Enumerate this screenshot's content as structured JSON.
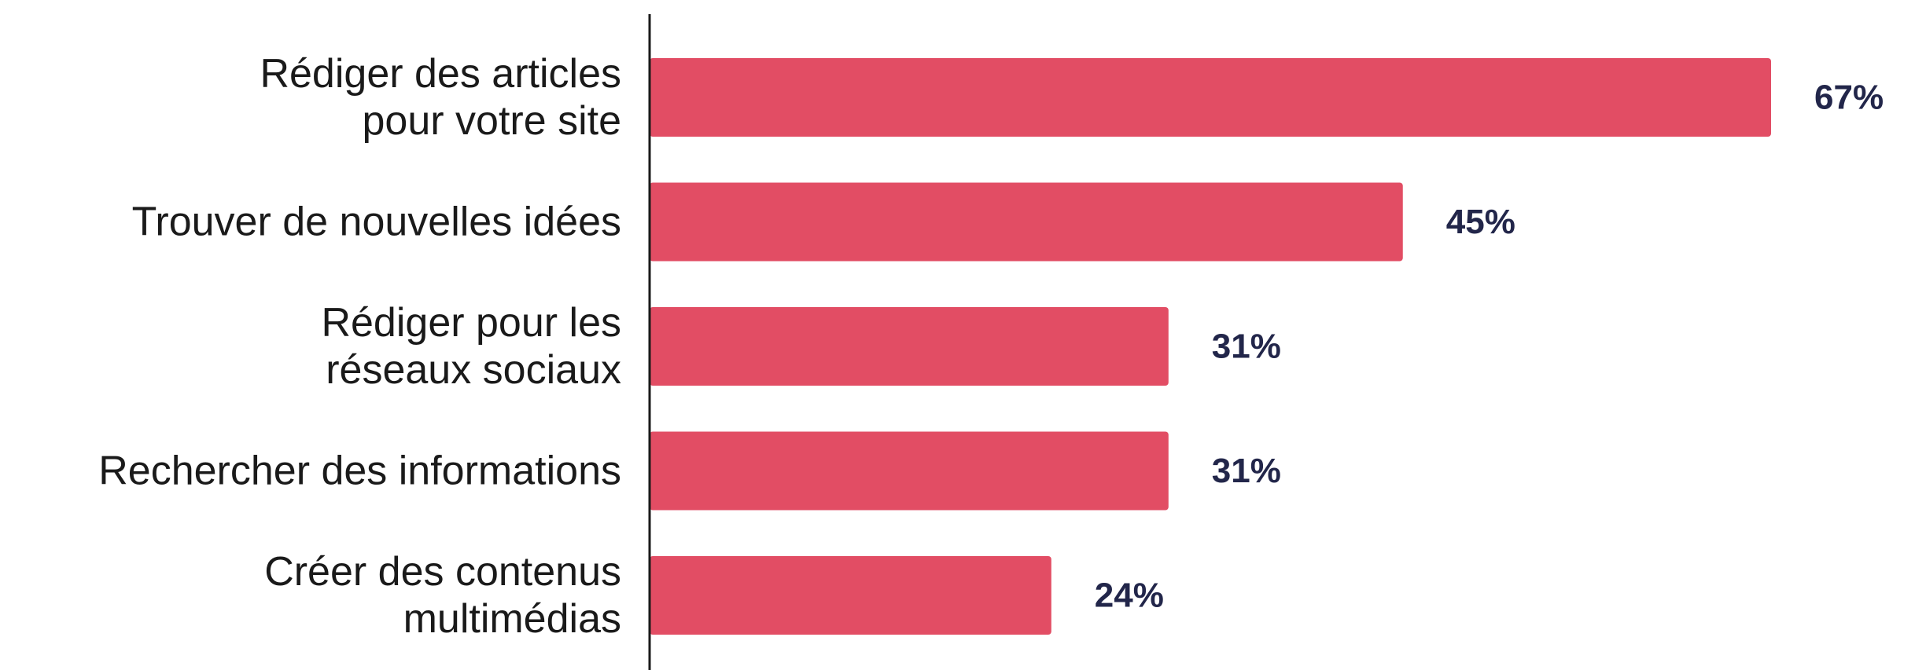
{
  "chart_data": {
    "type": "bar",
    "orientation": "horizontal",
    "categories": [
      [
        "Rédiger des articles",
        "pour votre site"
      ],
      [
        "Trouver de nouvelles idées"
      ],
      [
        "Rédiger pour les",
        "réseaux sociaux"
      ],
      [
        "Rechercher des informations"
      ],
      [
        "Créer des contenus",
        "multimédias"
      ]
    ],
    "values": [
      67,
      45,
      31,
      31,
      24
    ],
    "value_labels": [
      "67%",
      "45%",
      "31%",
      "31%",
      "24%"
    ],
    "unit": "%",
    "title": "",
    "xlabel": "",
    "ylabel": "",
    "grid": false,
    "legend": "none",
    "bar_color": "#e24d64",
    "value_label_color": "#22264a",
    "axis_color": "#1a1a1a"
  }
}
